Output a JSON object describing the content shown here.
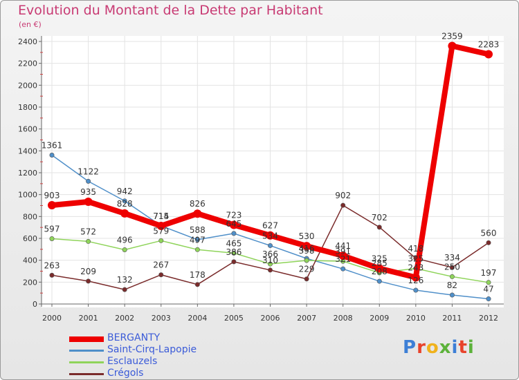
{
  "title": "Evolution du Montant de la Dette par Habitant",
  "unit": "(en €)",
  "logo": {
    "text": "Proxiti",
    "colors": [
      "#3d7fd6",
      "#e8432b",
      "#f0b21c",
      "#5cb23a",
      "#3d7fd6",
      "#e8432b",
      "#5cb23a"
    ]
  },
  "chart_data": {
    "type": "line",
    "x": [
      "2000",
      "2001",
      "2002",
      "2003",
      "2004",
      "2005",
      "2006",
      "2007",
      "2008",
      "2009",
      "2010",
      "2011",
      "2012"
    ],
    "ylim": [
      0,
      2400
    ],
    "yticks": [
      "0",
      "200",
      "400",
      "600",
      "800",
      "1000",
      "1200",
      "1400",
      "1600",
      "1800",
      "2000",
      "2200",
      "2400"
    ],
    "grid": true,
    "legend_position": "bottom-left",
    "series": [
      {
        "name": "Saint-Cirq-Lapopie",
        "color": "#4f8fc9",
        "values": [
          1361,
          1122,
          942,
          715,
          588,
          645,
          534,
          416,
          321,
          208,
          126,
          82,
          47
        ],
        "labels": [
          "1361",
          "1122",
          "942",
          "715",
          "588",
          "645",
          "534",
          "416",
          "321",
          "208",
          "126",
          "82",
          "47"
        ]
      },
      {
        "name": "Esclauzels",
        "color": "#8fd45a",
        "values": [
          597,
          572,
          496,
          579,
          497,
          465,
          366,
          398,
          391,
          285,
          325,
          250,
          197
        ],
        "labels": [
          "597",
          "572",
          "496",
          "579",
          "497",
          "465",
          "366",
          "398",
          "391",
          "285",
          "325",
          "250",
          "197"
        ]
      },
      {
        "name": "Crégols",
        "color": "#7a2b2b",
        "values": [
          263,
          209,
          132,
          267,
          178,
          386,
          310,
          229,
          902,
          702,
          418,
          334,
          560
        ],
        "labels": [
          "263",
          "209",
          "132",
          "267",
          "178",
          "386",
          "310",
          "229",
          "902",
          "702",
          "418",
          "334",
          "560"
        ]
      },
      {
        "name": "BERGANTY",
        "color": "#ee0000",
        "values": [
          903,
          935,
          828,
          714,
          826,
          723,
          627,
          530,
          441,
          325,
          243,
          2359,
          2283
        ],
        "labels": [
          "903",
          "935",
          "828",
          "714",
          "826",
          "723",
          "627",
          "530",
          "441",
          "325",
          "243",
          "2359",
          "2283"
        ]
      }
    ]
  }
}
